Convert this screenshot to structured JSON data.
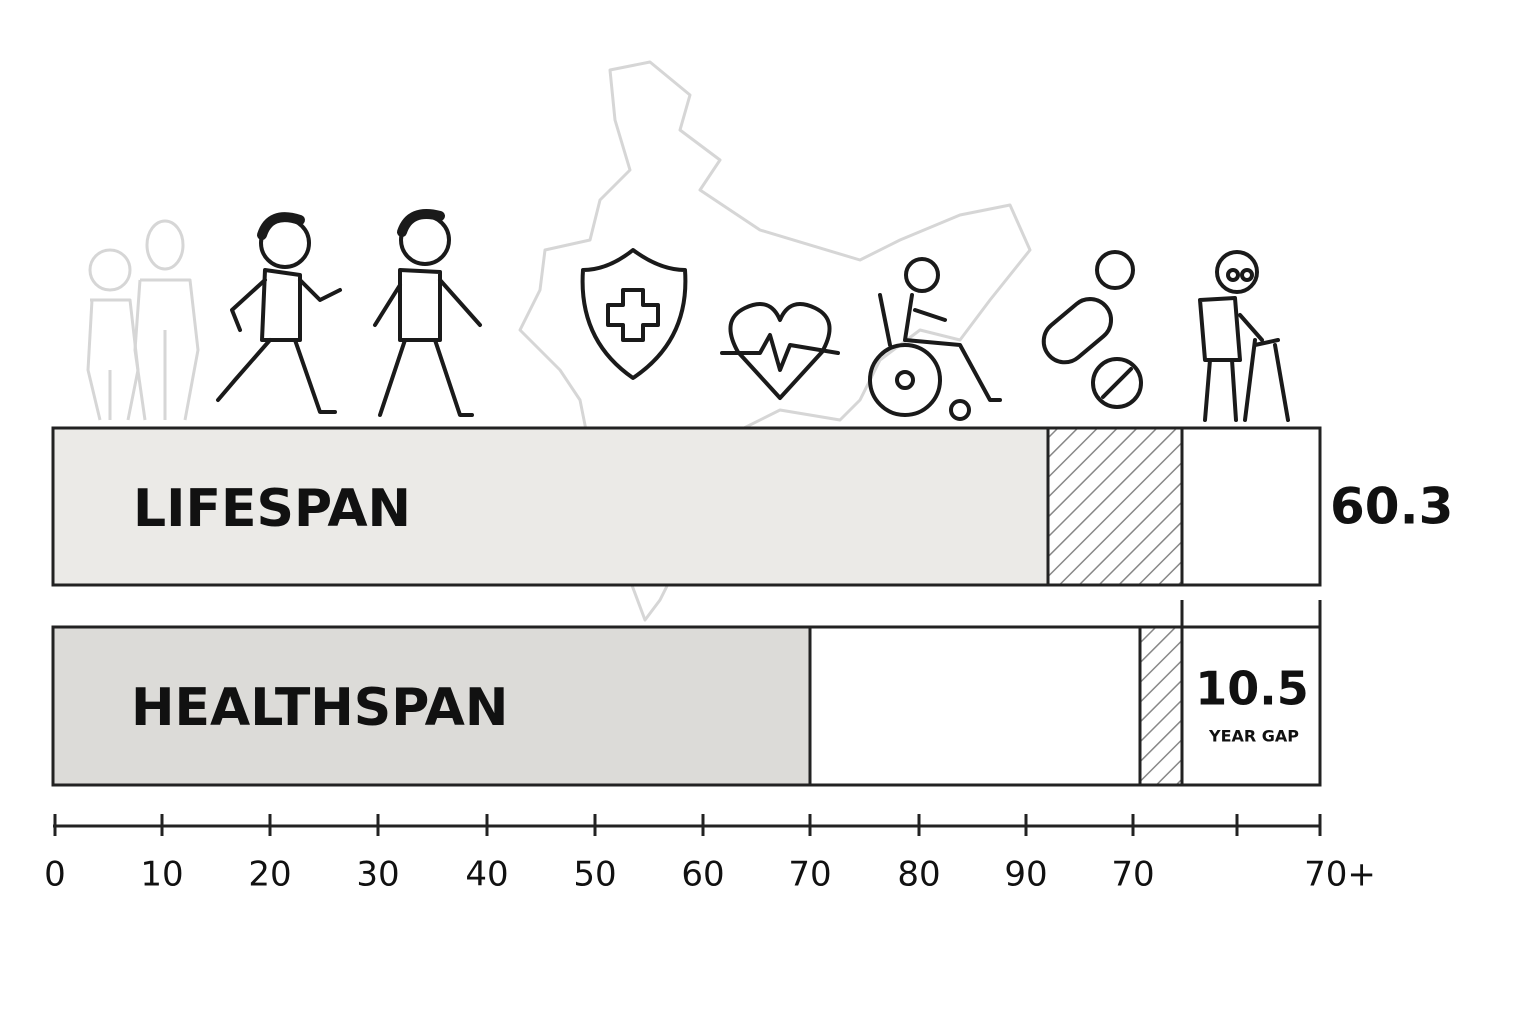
{
  "bars": [
    {
      "label": "LIFESPAN",
      "value_label": "60.3"
    },
    {
      "label": "HEALTHSPAN",
      "value_label": "10.5",
      "sub_label": "YEAR GAP"
    }
  ],
  "axis": {
    "ticks": [
      "0",
      "10",
      "20",
      "30",
      "40",
      "50",
      "60",
      "70",
      "80",
      "90",
      "70",
      "70+"
    ]
  }
}
